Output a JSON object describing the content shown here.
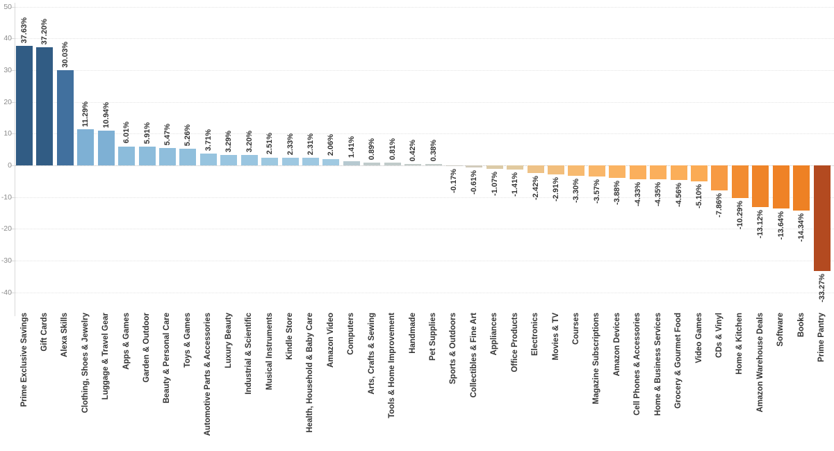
{
  "chart_data": {
    "type": "bar",
    "title": "",
    "xlabel": "",
    "ylabel": "",
    "legend": false,
    "grid": true,
    "y_axis": {
      "ticks": [
        50,
        40,
        30,
        20,
        10,
        0,
        -10,
        -20,
        -30,
        -40
      ],
      "range_shown": [
        -45,
        52
      ],
      "tick_label_color": "#8a8a8a"
    },
    "categories": [
      "Prime Exclusive Savings",
      "Gift Cards",
      "Alexa Skills",
      "Clothing, Shoes & Jewelry",
      "Luggage & Travel Gear",
      "Apps & Games",
      "Garden & Outdoor",
      "Beauty & Personal Care",
      "Toys & Games",
      "Automotive Parts & Accessories",
      "Luxury Beauty",
      "Industrial & Scientific",
      "Musical Instruments",
      "Kindle Store",
      "Health, Household & Baby Care",
      "Amazon Video",
      "Computers",
      "Arts, Crafts & Sewing",
      "Tools & Home Improvement",
      "Handmade",
      "Pet Supplies",
      "Sports & Outdoors",
      "Collectibles & Fine Art",
      "Appliances",
      "Office Products",
      "Electronics",
      "Movies & TV",
      "Courses",
      "Magazine Subscriptions",
      "Amazon Devices",
      "Cell Phones & Accessories",
      "Home & Business Services",
      "Grocery & Gourmet Food",
      "Video Games",
      "CDs & Vinyl",
      "Home & Kitchen",
      "Amazon Warehouse Deals",
      "Software",
      "Books",
      "Prime Pantry"
    ],
    "values": [
      37.63,
      37.2,
      30.03,
      11.29,
      10.94,
      6.01,
      5.91,
      5.47,
      5.26,
      3.71,
      3.29,
      3.2,
      2.51,
      2.33,
      2.31,
      2.06,
      1.41,
      0.89,
      0.81,
      0.42,
      0.38,
      -0.17,
      -0.61,
      -1.07,
      -1.41,
      -2.42,
      -2.91,
      -3.3,
      -3.57,
      -3.88,
      -4.33,
      -4.35,
      -4.56,
      -5.1,
      -7.86,
      -10.29,
      -13.12,
      -13.64,
      -14.34,
      -33.27
    ],
    "value_labels": [
      "37.63%",
      "37.20%",
      "30.03%",
      "11.29%",
      "10.94%",
      "6.01%",
      "5.91%",
      "5.47%",
      "5.26%",
      "3.71%",
      "3.29%",
      "3.20%",
      "2.51%",
      "2.33%",
      "2.31%",
      "2.06%",
      "1.41%",
      "0.89%",
      "0.81%",
      "0.42%",
      "0.38%",
      "-0.17%",
      "-0.61%",
      "-1.07%",
      "-1.41%",
      "-2.42%",
      "-2.91%",
      "-3.30%",
      "-3.57%",
      "-3.88%",
      "-4.33%",
      "-4.35%",
      "-4.56%",
      "-5.10%",
      "-7.86%",
      "-10.29%",
      "-13.12%",
      "-13.64%",
      "-14.34%",
      "-33.27%"
    ],
    "bar_colors": [
      "#315c84",
      "#315c84",
      "#41709e",
      "#7eb0d4",
      "#7eb0d4",
      "#8cbcdb",
      "#8cbcdb",
      "#8fbedc",
      "#90bfdc",
      "#97c4df",
      "#99c5e0",
      "#99c5e0",
      "#9dc8e0",
      "#9ec8e1",
      "#9ec8e1",
      "#a0c9e1",
      "#b6c9d0",
      "#bfcbcb",
      "#c0cbca",
      "#c2cbc8",
      "#c2cbc8",
      "#cbcac2",
      "#d1cbbc",
      "#dccba8",
      "#e1ca9f",
      "#eec287",
      "#f2be7c",
      "#f7ba70",
      "#f9b669",
      "#fab362",
      "#fbaf5c",
      "#fbaf5c",
      "#fbae59",
      "#fbab54",
      "#f79a43",
      "#f28c31",
      "#ef8428",
      "#ef8226",
      "#ee8124",
      "#b34a20"
    ],
    "label_text_color": "#333333",
    "palette_note": "orange-blue diverging"
  }
}
